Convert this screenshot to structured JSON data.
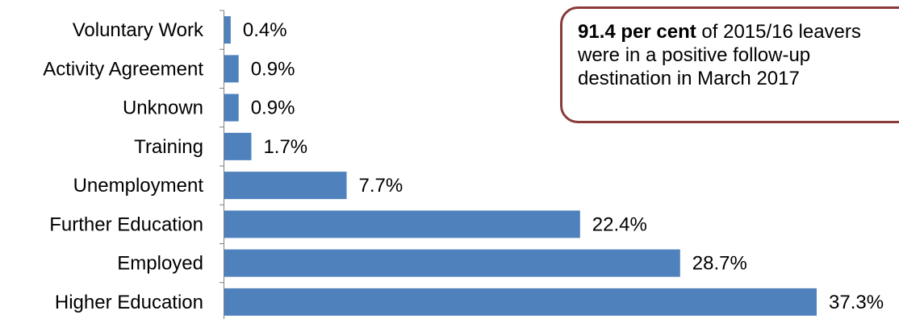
{
  "chart_data": {
    "type": "bar",
    "orientation": "horizontal",
    "categories": [
      "Voluntary Work",
      "Activity Agreement",
      "Unknown",
      "Training",
      "Unemployment",
      "Further Education",
      "Employed",
      "Higher Education"
    ],
    "values": [
      0.4,
      0.9,
      0.9,
      1.7,
      7.7,
      22.4,
      28.7,
      37.3
    ],
    "value_labels": [
      "0.4%",
      "0.9%",
      "0.9%",
      "1.7%",
      "7.7%",
      "22.4%",
      "28.7%",
      "37.3%"
    ],
    "xlim": [
      0,
      37.3
    ],
    "grid": false,
    "legend": false,
    "bar_color": "#4F81BD"
  },
  "callout": {
    "bold_text": "91.4 per cent",
    "line1_rest": " of 2015/16 leavers",
    "line2": "were in a positive follow-up",
    "line3": "destination in March 2017",
    "border_color": "#8B3A3A"
  }
}
